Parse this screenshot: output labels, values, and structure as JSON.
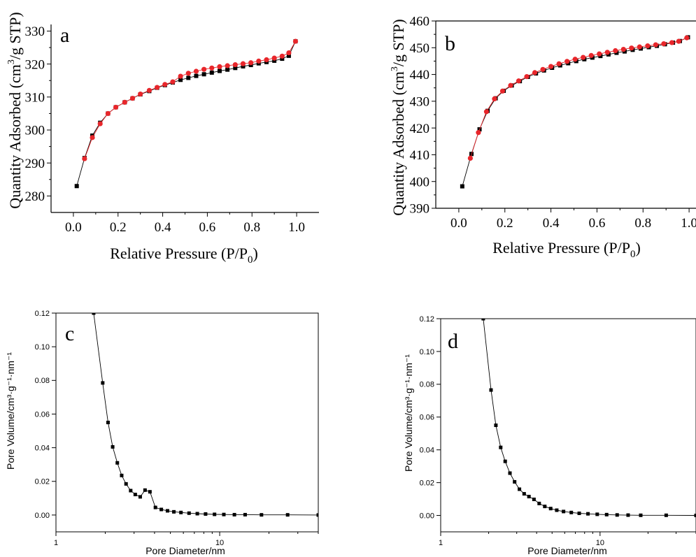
{
  "chart_data": [
    {
      "panel": "a",
      "type": "scatter",
      "xlabel": "Relative Pressure (P/P0)",
      "ylabel": "Quantity Adsorbed (cm³/g STP)",
      "xlim": [
        -0.1,
        1.1
      ],
      "ylim": [
        275,
        332
      ],
      "xticks": [
        0.0,
        0.2,
        0.4,
        0.6,
        0.8,
        1.0
      ],
      "yticks": [
        280,
        290,
        300,
        310,
        320,
        330
      ],
      "grid": false,
      "series": [
        {
          "color": "#000000",
          "marker": "square",
          "x": [
            0.015,
            0.05,
            0.085,
            0.12,
            0.155,
            0.19,
            0.23,
            0.265,
            0.3,
            0.34,
            0.375,
            0.41,
            0.445,
            0.48,
            0.515,
            0.55,
            0.585,
            0.62,
            0.655,
            0.69,
            0.725,
            0.76,
            0.795,
            0.83,
            0.865,
            0.9,
            0.935,
            0.965,
            0.995
          ],
          "y": [
            283.0,
            291.5,
            298.3,
            302.2,
            305.0,
            306.9,
            308.4,
            309.6,
            310.8,
            311.8,
            312.8,
            313.6,
            314.4,
            315.2,
            315.8,
            316.4,
            316.9,
            317.4,
            317.9,
            318.3,
            318.8,
            319.3,
            319.7,
            320.2,
            320.6,
            321.0,
            321.6,
            322.5,
            326.9
          ]
        },
        {
          "color": "#e8262b",
          "marker": "circle",
          "x": [
            0.05,
            0.085,
            0.12,
            0.155,
            0.19,
            0.23,
            0.265,
            0.3,
            0.34,
            0.375,
            0.41,
            0.445,
            0.48,
            0.515,
            0.55,
            0.585,
            0.62,
            0.655,
            0.69,
            0.725,
            0.76,
            0.795,
            0.83,
            0.865,
            0.9,
            0.935,
            0.965,
            0.995
          ],
          "y": [
            291.3,
            297.7,
            301.9,
            305.0,
            306.9,
            308.4,
            309.6,
            310.9,
            312.0,
            312.9,
            313.8,
            314.6,
            316.3,
            317.2,
            317.8,
            318.4,
            318.8,
            319.2,
            319.5,
            319.8,
            320.1,
            320.4,
            320.9,
            321.3,
            321.8,
            322.4,
            323.4,
            326.9
          ]
        }
      ]
    },
    {
      "panel": "b",
      "type": "scatter",
      "xlabel": "Relative Pressure (P/P0)",
      "ylabel": "Quantity Adsorbed (cm³/g STP)",
      "xlim": [
        -0.1,
        1.03
      ],
      "ylim": [
        390,
        460
      ],
      "xticks": [
        0.0,
        0.2,
        0.4,
        0.6,
        0.8,
        1.0
      ],
      "yticks": [
        390,
        400,
        410,
        420,
        430,
        440,
        450,
        460
      ],
      "grid": false,
      "series": [
        {
          "color": "#000000",
          "marker": "square",
          "x": [
            0.015,
            0.055,
            0.09,
            0.125,
            0.16,
            0.195,
            0.23,
            0.265,
            0.3,
            0.335,
            0.37,
            0.405,
            0.44,
            0.475,
            0.51,
            0.545,
            0.58,
            0.615,
            0.65,
            0.685,
            0.72,
            0.755,
            0.79,
            0.825,
            0.86,
            0.895,
            0.93,
            0.96,
            0.995
          ],
          "y": [
            398.2,
            410.3,
            419.5,
            426.4,
            431.1,
            433.9,
            435.9,
            437.5,
            439.1,
            440.4,
            441.5,
            442.5,
            443.4,
            444.2,
            445.0,
            445.7,
            446.3,
            446.9,
            447.5,
            448.1,
            448.6,
            449.2,
            449.7,
            450.2,
            450.7,
            451.3,
            451.9,
            452.5,
            453.9
          ]
        },
        {
          "color": "#e8262b",
          "marker": "circle",
          "x": [
            0.05,
            0.085,
            0.12,
            0.155,
            0.19,
            0.225,
            0.26,
            0.295,
            0.33,
            0.365,
            0.4,
            0.435,
            0.47,
            0.505,
            0.54,
            0.575,
            0.61,
            0.645,
            0.68,
            0.715,
            0.75,
            0.785,
            0.82,
            0.855,
            0.89,
            0.925,
            0.955,
            0.99
          ],
          "y": [
            408.7,
            418.3,
            426.1,
            430.9,
            433.8,
            435.9,
            437.6,
            439.2,
            440.7,
            441.9,
            443.0,
            444.0,
            444.9,
            445.7,
            446.4,
            447.1,
            447.7,
            448.3,
            448.9,
            449.4,
            449.9,
            450.3,
            450.7,
            451.1,
            451.5,
            451.9,
            452.4,
            453.7
          ]
        }
      ]
    },
    {
      "panel": "c",
      "type": "line",
      "xlabel": "Pore Diameter/nm",
      "ylabel": "Pore Volume/cm³·g⁻¹·nm⁻¹",
      "xscale": "log",
      "xlim": [
        1,
        40
      ],
      "ylim": [
        -0.01,
        0.12
      ],
      "xticks": [
        1,
        10
      ],
      "yticks": [
        0.0,
        0.02,
        0.04,
        0.06,
        0.08,
        0.1,
        0.12
      ],
      "grid": false,
      "series": [
        {
          "color": "#000000",
          "marker": "square",
          "x": [
            1.7,
            1.93,
            2.08,
            2.22,
            2.37,
            2.52,
            2.68,
            2.86,
            3.05,
            3.27,
            3.5,
            3.75,
            4.05,
            4.4,
            4.8,
            5.25,
            5.8,
            6.5,
            7.3,
            8.2,
            9.3,
            10.6,
            12.3,
            14.3,
            18.0,
            26.0,
            40.0
          ],
          "y": [
            0.12,
            0.0785,
            0.055,
            0.0405,
            0.031,
            0.0235,
            0.0185,
            0.0145,
            0.0122,
            0.0108,
            0.0148,
            0.0138,
            0.0045,
            0.0033,
            0.0025,
            0.0019,
            0.0015,
            0.0011,
            0.0008,
            0.0006,
            0.0004,
            0.0003,
            0.0002,
            0.0002,
            0.0001,
            0.0001,
            0.0
          ]
        }
      ]
    },
    {
      "panel": "d",
      "type": "line",
      "xlabel": "Pore Diameter/nm",
      "ylabel": "Pore Volume/cm³·g⁻¹·nm⁻¹",
      "xscale": "log",
      "xlim": [
        1,
        40
      ],
      "ylim": [
        -0.01,
        0.12
      ],
      "xticks": [
        1,
        10
      ],
      "yticks": [
        0.0,
        0.02,
        0.04,
        0.06,
        0.08,
        0.1,
        0.12
      ],
      "grid": false,
      "series": [
        {
          "color": "#000000",
          "marker": "square",
          "x": [
            1.85,
            2.07,
            2.22,
            2.38,
            2.54,
            2.72,
            2.91,
            3.12,
            3.34,
            3.58,
            3.85,
            4.15,
            4.5,
            4.9,
            5.35,
            5.9,
            6.6,
            7.4,
            8.4,
            9.6,
            11.0,
            12.8,
            15.0,
            18.0,
            26.0,
            40.0
          ],
          "y": [
            0.12,
            0.0765,
            0.055,
            0.0415,
            0.033,
            0.0258,
            0.0205,
            0.016,
            0.0132,
            0.0115,
            0.0098,
            0.0073,
            0.0055,
            0.0042,
            0.0032,
            0.0024,
            0.0018,
            0.0013,
            0.001,
            0.0007,
            0.0005,
            0.0003,
            0.0002,
            0.0001,
            0.0001,
            0.0
          ]
        }
      ]
    }
  ],
  "panel_labels": {
    "a": "a",
    "b": "b",
    "c": "c",
    "d": "d"
  },
  "labels": {
    "iso_xlabel_main": "Relative Pressure (P/P",
    "iso_xlabel_sub": "0",
    "iso_xlabel_end": ")",
    "iso_ylabel_main": "Quantity Adsorbed (cm",
    "iso_ylabel_sup": "3",
    "iso_ylabel_end": "/g STP)",
    "psd_xlabel": "Pore Diameter/nm",
    "psd_ylabel": "Pore Volume/cm³·g⁻¹·nm⁻¹"
  }
}
